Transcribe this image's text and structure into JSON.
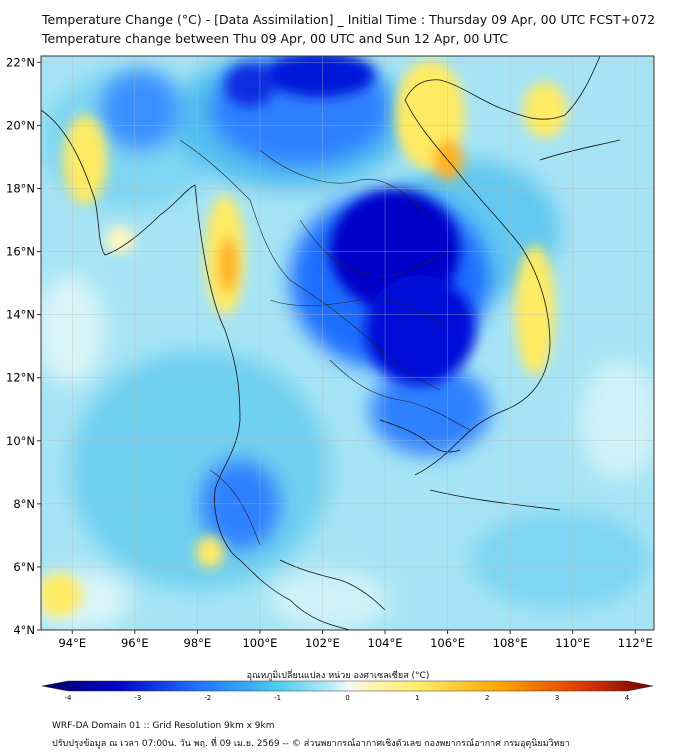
{
  "title_line1": "Temperature Change (°C) - [Data Assimilation] _ Initial Time : Thursday 09 Apr, 00 UTC FCST+072",
  "title_line2": "Temperature change between Thu 09 Apr, 00 UTC and Sun 12 Apr, 00 UTC",
  "colorbar_label": "อุณหภูมิเปลี่ยนแปลง หน่วย องศาเซลเซียส (°C)",
  "colorbar_ticks": [
    "-4",
    "-3",
    "-2",
    "-1",
    "0",
    "1",
    "2",
    "3",
    "4"
  ],
  "lat_labels": [
    "22°N",
    "20°N",
    "18°N",
    "16°N",
    "14°N",
    "12°N",
    "10°N",
    "8°N",
    "6°N",
    "4°N"
  ],
  "lon_labels": [
    "94°E",
    "96°E",
    "98°E",
    "100°E",
    "102°E",
    "104°E",
    "106°E",
    "108°E",
    "110°E",
    "112°E"
  ],
  "footer_line1": "WRF-DA Domain 01 :: Grid Resolution 9km x 9km",
  "footer_line2": "ปรับปรุงข้อมูล ณ เวลา 07:00น. วัน พฤ. ที่ 09 เม.ย. 2569 -- © ส่วนพยากรณ์อากาศเชิงตัวเลข กองพยากรณ์อากาศ กรมอุตุนิยมวิทยา",
  "colors": {
    "neg4": "#00005a",
    "neg3": "#0000c8",
    "neg2": "#1e6eff",
    "neg1": "#46c8f0",
    "neg05": "#a0e6f5",
    "zero": "#e6fafa",
    "pos1": "#ffeb64",
    "pos2": "#ffa500",
    "pos3": "#e13c00",
    "pos4": "#6e0000"
  }
}
